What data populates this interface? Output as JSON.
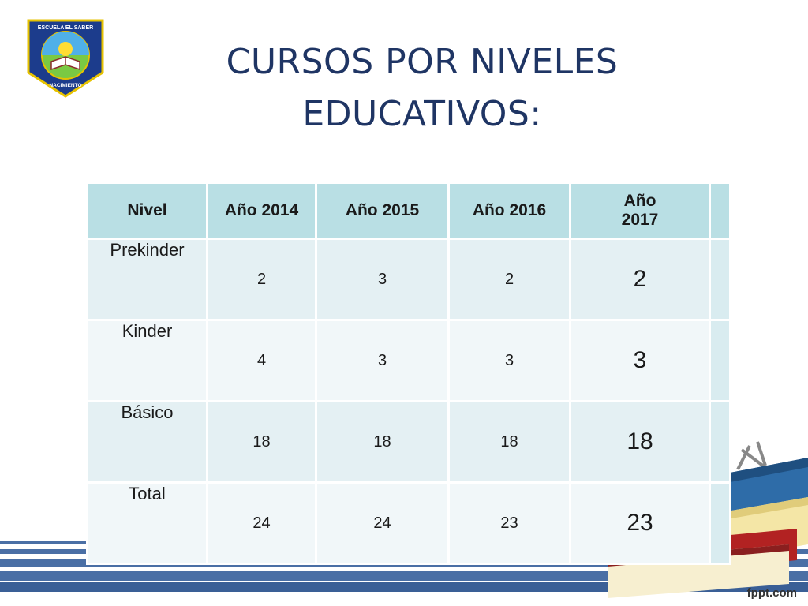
{
  "logo": {
    "icon": "school-crest-icon",
    "text_top": "ESCUELA EL SABER",
    "text_bottom": "NACIMIENTO"
  },
  "title": {
    "line1": "CURSOS POR NIVELES",
    "line2": "EDUCATIVOS:"
  },
  "table": {
    "headers": [
      "Nivel",
      "Año 2014",
      "Año 2015",
      "Año 2016",
      "Año 2017"
    ],
    "rows": [
      {
        "label": "Prekinder",
        "values": [
          "2",
          "3",
          "2",
          "2"
        ]
      },
      {
        "label": "Kinder",
        "values": [
          "4",
          "3",
          "3",
          "3"
        ]
      },
      {
        "label": "Básico",
        "values": [
          "18",
          "18",
          "18",
          "18"
        ]
      },
      {
        "label": "Total",
        "values": [
          "24",
          "24",
          "23",
          "23"
        ]
      }
    ]
  },
  "decoration": {
    "books_icon": "stacked-books-icon"
  },
  "footer": {
    "brand": "fppt.com"
  },
  "colors": {
    "title": "#1f3564",
    "header_bg": "#b9dfe4",
    "row_bg": "#e4f0f3",
    "stripe": "#4a6fa5"
  }
}
